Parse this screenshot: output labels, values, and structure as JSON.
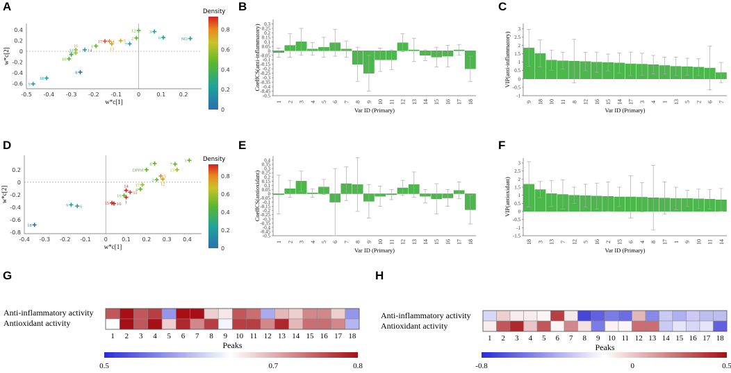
{
  "panels": {
    "A": "A",
    "B": "B",
    "C": "C",
    "D": "D",
    "E": "E",
    "F": "F",
    "G": "G",
    "H": "H"
  },
  "chart_data": [
    {
      "id": "A",
      "type": "scatter",
      "xlabel": "w*c[1]",
      "ylabel": "w*c[2]",
      "xlim": [
        -0.5,
        0.28
      ],
      "ylim": [
        -0.7,
        0.52
      ],
      "xticks": [
        "-0.5",
        "-0.4",
        "-0.3",
        "-0.2",
        "-0.1",
        "0",
        "0.1",
        "0.2"
      ],
      "xtick_values": [
        -0.5,
        -0.4,
        -0.3,
        -0.2,
        -0.1,
        0,
        0.1,
        0.2
      ],
      "yticks": [
        "0.4",
        "0.2",
        "0",
        "-0.2",
        "-0.4",
        "-0.6"
      ],
      "ytick_values": [
        0.4,
        0.2,
        0,
        -0.2,
        -0.4,
        -0.6
      ],
      "colorbar": {
        "title": "Density",
        "ticks": [
          "0.8",
          "0.6",
          "0.4",
          "0.2",
          "0"
        ]
      },
      "points": [
        {
          "label": "9",
          "x": -0.47,
          "y": -0.61,
          "color": "#1fa39a",
          "lpos": "left"
        },
        {
          "label": "18",
          "x": -0.41,
          "y": -0.5,
          "color": "#1fa39a",
          "lpos": "left"
        },
        {
          "label": "8",
          "x": -0.26,
          "y": -0.39,
          "color": "#2a6fb0",
          "lpos": "left"
        },
        {
          "label": "10",
          "x": -0.31,
          "y": -0.14,
          "color": "#5ab82f",
          "lpos": "left"
        },
        {
          "label": "11",
          "x": -0.3,
          "y": -0.06,
          "color": "#1fa39a",
          "lpos": "above"
        },
        {
          "label": "15",
          "x": -0.28,
          "y": -0.03,
          "color": "#9bbf2a",
          "lpos": "left"
        },
        {
          "label": "16",
          "x": -0.28,
          "y": 0.03,
          "color": "#9bbf2a",
          "lpos": "above"
        },
        {
          "label": "14",
          "x": -0.24,
          "y": 0.03,
          "color": "#1fa39a",
          "lpos": "right"
        },
        {
          "label": "1",
          "x": -0.19,
          "y": 0.1,
          "color": "#5ab82f",
          "lpos": "left"
        },
        {
          "label": "17",
          "x": -0.15,
          "y": 0.19,
          "color": "#e05020",
          "lpos": "left"
        },
        {
          "label": "4",
          "x": -0.13,
          "y": 0.19,
          "color": "#e88a20",
          "lpos": "right"
        },
        {
          "label": "13",
          "x": -0.12,
          "y": 0.14,
          "color": "#c9a020",
          "lpos": "below"
        },
        {
          "label": "5",
          "x": -0.08,
          "y": 0.2,
          "color": "#c9b020",
          "lpos": "right"
        },
        {
          "label": "7",
          "x": -0.04,
          "y": 0.14,
          "color": "#1fa39a",
          "lpos": "left"
        },
        {
          "label": "2",
          "x": -0.01,
          "y": 0.25,
          "color": "#5ab82f",
          "lpos": "left"
        },
        {
          "label": "12",
          "x": 0.0,
          "y": 0.39,
          "color": "#5ab82f",
          "lpos": "left"
        },
        {
          "label": "3",
          "x": 0.07,
          "y": 0.37,
          "color": "#1fa39a",
          "lpos": "left"
        },
        {
          "label": "6",
          "x": 0.11,
          "y": 0.26,
          "color": "#1fa39a",
          "lpos": "left"
        },
        {
          "label": "NO",
          "x": 0.23,
          "y": 0.24,
          "color": "#1fa39a",
          "lpos": "left"
        }
      ]
    },
    {
      "id": "B",
      "type": "bar",
      "ylabel": "CoeffCS(anti-inflammatory)",
      "xlabel": "Var ID (Primary)",
      "ylim": [
        -0.5,
        0.35
      ],
      "yticks": [
        "0.3",
        "0.25",
        "0.2",
        "0.15",
        "0.1",
        "0.05",
        "0",
        "-0.05",
        "-0.1",
        "-0.15",
        "-0.2",
        "-0.25",
        "-0.3",
        "-0.35",
        "-0.4",
        "-0.45",
        "-0.5"
      ],
      "ytick_values": [
        0.3,
        0.25,
        0.2,
        0.15,
        0.1,
        0.05,
        0,
        -0.05,
        -0.1,
        -0.15,
        -0.2,
        -0.25,
        -0.3,
        -0.35,
        -0.4,
        -0.45,
        -0.5
      ],
      "categories": [
        "1",
        "2",
        "3",
        "4",
        "5",
        "6",
        "7",
        "8",
        "9",
        "10",
        "11",
        "12",
        "13",
        "14",
        "15",
        "16",
        "17",
        "18"
      ],
      "values": [
        -0.02,
        0.06,
        0.1,
        0.02,
        0.04,
        0.09,
        0.02,
        -0.15,
        -0.25,
        -0.1,
        -0.1,
        0.09,
        0.01,
        -0.05,
        -0.07,
        -0.06,
        0.01,
        -0.2
      ],
      "errors": [
        0.05,
        0.13,
        0.15,
        0.07,
        0.11,
        0.15,
        0.09,
        0.19,
        0.2,
        0.13,
        0.11,
        0.1,
        0.13,
        0.06,
        0.11,
        0.12,
        0.06,
        0.14
      ]
    },
    {
      "id": "C",
      "type": "bar",
      "ylabel": "VIP(anti-inflammatory)",
      "xlabel": "Var ID (Primary)",
      "ylim": [
        -1,
        3.3
      ],
      "yticks": [
        "3",
        "2.5",
        "2",
        "1.5",
        "1",
        "0.5",
        "0",
        "-0.5",
        "-1"
      ],
      "ytick_values": [
        3,
        2.5,
        2,
        1.5,
        1,
        0.5,
        0,
        -0.5,
        -1
      ],
      "categories": [
        "9",
        "18",
        "10",
        "11",
        "8",
        "12",
        "16",
        "15",
        "14",
        "17",
        "3",
        "4",
        "1",
        "13",
        "5",
        "2",
        "6",
        "7"
      ],
      "values": [
        1.85,
        1.52,
        1.12,
        1.08,
        1.06,
        1.04,
        1.0,
        0.98,
        0.95,
        0.9,
        0.88,
        0.85,
        0.8,
        0.75,
        0.73,
        0.7,
        0.65,
        0.38
      ],
      "errors": [
        1.1,
        0.8,
        0.6,
        0.5,
        1.3,
        0.55,
        0.6,
        0.5,
        0.6,
        0.7,
        0.65,
        0.55,
        0.5,
        0.55,
        0.5,
        0.5,
        1.3,
        0.6
      ]
    },
    {
      "id": "D",
      "type": "scatter",
      "xlabel": "w*c[1]",
      "ylabel": "w*c[2]",
      "xlim": [
        -0.4,
        0.47
      ],
      "ylim": [
        -0.82,
        0.43
      ],
      "xticks": [
        "-0.4",
        "-0.3",
        "-0.2",
        "-0.1",
        "0",
        "0.1",
        "0.2",
        "0.3",
        "0.4"
      ],
      "xtick_values": [
        -0.4,
        -0.3,
        -0.2,
        -0.1,
        0,
        0.1,
        0.2,
        0.3,
        0.4
      ],
      "yticks": [
        "0.2",
        "0",
        "-0.2",
        "-0.4",
        "-0.6",
        "-0.8"
      ],
      "ytick_values": [
        0.2,
        0,
        -0.2,
        -0.4,
        -0.6,
        -0.8
      ],
      "colorbar": {
        "title": "Density",
        "ticks": [
          "0.8",
          "0.6",
          "0.4",
          "0.2",
          "0"
        ]
      },
      "points": [
        {
          "label": "18",
          "x": -0.35,
          "y": -0.68,
          "color": "#2a6fb0",
          "lpos": "left"
        },
        {
          "label": "9",
          "x": -0.17,
          "y": -0.36,
          "color": "#1fa39a",
          "lpos": "left"
        },
        {
          "label": "6",
          "x": -0.14,
          "y": -0.38,
          "color": "#1fa39a",
          "lpos": "right"
        },
        {
          "label": "15",
          "x": 0.03,
          "y": -0.33,
          "color": "#d02020",
          "lpos": "left"
        },
        {
          "label": "16",
          "x": 0.04,
          "y": -0.34,
          "color": "#d02020",
          "lpos": "right"
        },
        {
          "label": "1",
          "x": 0.1,
          "y": -0.24,
          "color": "#d02020",
          "lpos": "below"
        },
        {
          "label": "10",
          "x": 0.09,
          "y": -0.21,
          "color": "#5ab82f",
          "lpos": "left"
        },
        {
          "label": "11",
          "x": 0.12,
          "y": -0.16,
          "color": "#d04020",
          "lpos": "right"
        },
        {
          "label": "14",
          "x": 0.1,
          "y": -0.13,
          "color": "#d02020",
          "lpos": "above"
        },
        {
          "label": "4",
          "x": 0.17,
          "y": -0.11,
          "color": "#5ab82f",
          "lpos": "left"
        },
        {
          "label": "17",
          "x": 0.18,
          "y": -0.04,
          "color": "#9bbf2a",
          "lpos": "left"
        },
        {
          "label": "2",
          "x": 0.25,
          "y": 0.04,
          "color": "#5ab82f",
          "lpos": "left"
        },
        {
          "label": "5",
          "x": 0.27,
          "y": 0.1,
          "color": "#e88a20",
          "lpos": "right"
        },
        {
          "label": "12",
          "x": 0.28,
          "y": 0.05,
          "color": "#c9a020",
          "lpos": "below"
        },
        {
          "label": "DPPH",
          "x": 0.2,
          "y": 0.2,
          "color": "#5ab82f",
          "lpos": "left"
        },
        {
          "label": "8",
          "x": 0.24,
          "y": 0.3,
          "color": "#5ab82f",
          "lpos": "left"
        },
        {
          "label": "7",
          "x": 0.34,
          "y": 0.29,
          "color": "#5ab82f",
          "lpos": "left"
        },
        {
          "label": "13",
          "x": 0.35,
          "y": 0.2,
          "color": "#9bbf2a",
          "lpos": "left"
        },
        {
          "label": "3",
          "x": 0.41,
          "y": 0.35,
          "color": "#5ab82f",
          "lpos": "left"
        }
      ]
    },
    {
      "id": "E",
      "type": "bar",
      "ylabel": "CoeffCS(antioxidant)",
      "xlabel": "Var ID (Primary)",
      "ylim": [
        -0.5,
        0.45
      ],
      "yticks": [
        "0.4",
        "0.35",
        "0.3",
        "0.25",
        "0.2",
        "0.15",
        "0.1",
        "0.05",
        "0",
        "-0.05",
        "-0.1",
        "-0.15",
        "-0.2",
        "-0.25",
        "-0.3",
        "-0.35",
        "-0.4",
        "-0.45",
        "-0.5"
      ],
      "ytick_values": [
        0.4,
        0.35,
        0.3,
        0.25,
        0.2,
        0.15,
        0.1,
        0.05,
        0,
        -0.05,
        -0.1,
        -0.15,
        -0.2,
        -0.25,
        -0.3,
        -0.35,
        -0.4,
        -0.45,
        -0.5
      ],
      "categories": [
        "1",
        "2",
        "3",
        "4",
        "5",
        "6",
        "7",
        "8",
        "9",
        "10",
        "11",
        "12",
        "13",
        "14",
        "15",
        "16",
        "17",
        "18"
      ],
      "values": [
        -0.01,
        0.06,
        0.15,
        0.01,
        0.08,
        -0.1,
        0.12,
        0.11,
        -0.09,
        -0.03,
        -0.01,
        0.07,
        0.11,
        -0.03,
        -0.06,
        -0.05,
        0.04,
        -0.19
      ],
      "errors": [
        0.23,
        0.1,
        0.12,
        0.05,
        0.09,
        0.4,
        0.2,
        0.32,
        0.2,
        0.12,
        0.06,
        0.09,
        0.15,
        0.08,
        0.18,
        0.1,
        0.1,
        0.17
      ]
    },
    {
      "id": "F",
      "type": "bar",
      "ylabel": "VIP(antioxidant)",
      "xlabel": "Var ID (Primary)",
      "ylim": [
        -1.5,
        3.3
      ],
      "yticks": [
        "3",
        "2.5",
        "2",
        "1.5",
        "1",
        "0.5",
        "0",
        "-0.5",
        "-1",
        "-1.5"
      ],
      "ytick_values": [
        3,
        2.5,
        2,
        1.5,
        1,
        0.5,
        0,
        -0.5,
        -1,
        -1.5
      ],
      "categories": [
        "18",
        "3",
        "13",
        "7",
        "12",
        "5",
        "16",
        "2",
        "15",
        "6",
        "4",
        "8",
        "17",
        "1",
        "9",
        "10",
        "11",
        "14"
      ],
      "values": [
        1.68,
        1.35,
        1.1,
        1.05,
        1.0,
        0.98,
        0.95,
        0.93,
        0.9,
        0.9,
        0.88,
        0.85,
        0.83,
        0.8,
        0.8,
        0.78,
        0.76,
        0.72
      ],
      "errors": [
        1.4,
        0.5,
        0.8,
        0.9,
        0.5,
        0.7,
        0.8,
        0.9,
        0.6,
        1.3,
        0.9,
        2.0,
        1.0,
        0.7,
        0.5,
        0.6,
        0.6,
        0.7
      ]
    },
    {
      "id": "G",
      "type": "heatmap",
      "rows": [
        "Anti-inflammatory activity",
        "Antioxidant activity"
      ],
      "columns": [
        "1",
        "2",
        "3",
        "4",
        "5",
        "6",
        "7",
        "8",
        "9",
        "10",
        "11",
        "12",
        "13",
        "14",
        "15",
        "16",
        "17",
        "18"
      ],
      "values": [
        [
          0.77,
          0.8,
          0.77,
          0.78,
          0.6,
          0.8,
          0.8,
          0.72,
          0.71,
          0.77,
          0.76,
          0.62,
          0.73,
          0.72,
          0.75,
          0.75,
          0.72,
          0.6
        ],
        [
          0.7,
          0.8,
          0.77,
          0.8,
          0.72,
          0.79,
          0.75,
          0.78,
          0.69,
          0.78,
          0.78,
          0.75,
          0.79,
          0.73,
          0.76,
          0.76,
          0.75,
          0.63
        ]
      ],
      "xlabel": "Peaks",
      "colorbar": {
        "min": 0.5,
        "mid": 0.7,
        "max": 0.8,
        "ticks": [
          "0.5",
          "0.7",
          "0.8"
        ]
      }
    },
    {
      "id": "H",
      "type": "heatmap",
      "rows": [
        "Anti-inflammatory activity",
        "Antioxidant activity"
      ],
      "columns": [
        "1",
        "2",
        "3",
        "4",
        "5",
        "6",
        "7",
        "8",
        "9",
        "10",
        "11",
        "12",
        "13",
        "14",
        "15",
        "16",
        "17",
        "18"
      ],
      "values": [
        [
          -0.15,
          0.1,
          0.04,
          0.04,
          0.02,
          0.4,
          0.05,
          -0.7,
          -0.6,
          -0.5,
          -0.55,
          0.15,
          -0.45,
          -0.2,
          -0.3,
          -0.2,
          -0.25,
          -0.25
        ],
        [
          0.04,
          0.35,
          0.45,
          0.12,
          0.35,
          0.02,
          0.25,
          0.06,
          -0.5,
          0.03,
          0.02,
          0.3,
          0.3,
          -0.2,
          -0.1,
          -0.15,
          -0.1,
          -0.6
        ]
      ],
      "xlabel": "Peaks",
      "colorbar": {
        "min": -0.8,
        "mid": 0,
        "max": 0.5,
        "ticks": [
          "-0.8",
          "0",
          "0.5"
        ]
      }
    }
  ]
}
